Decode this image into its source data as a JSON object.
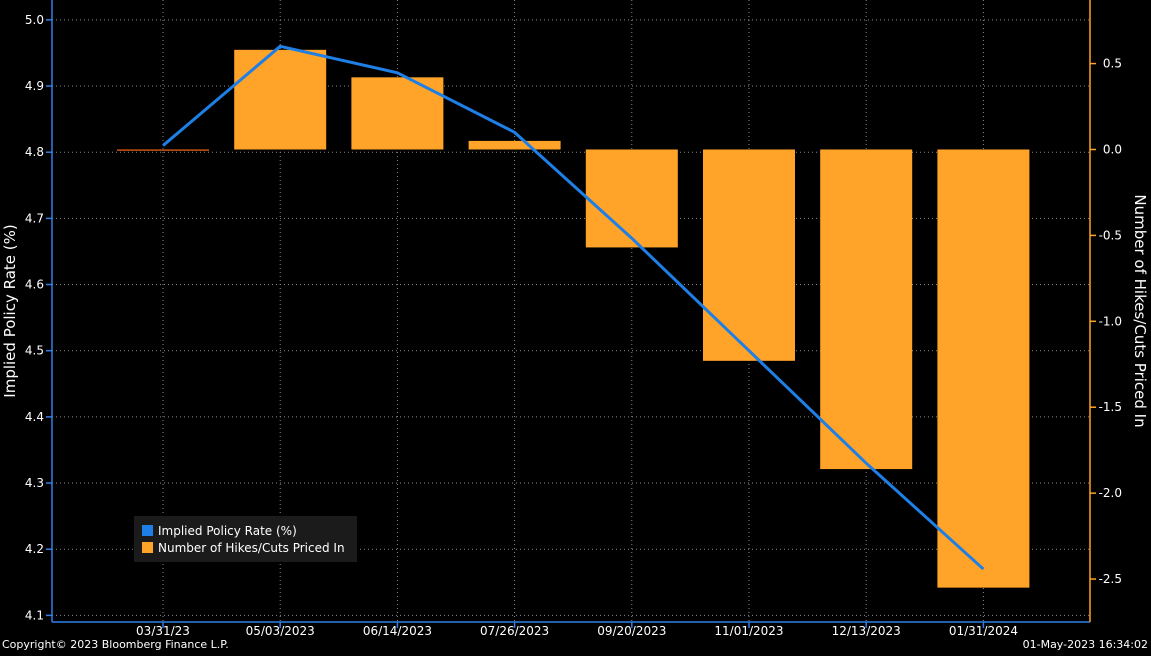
{
  "chart_data": {
    "type": "bar+line",
    "categories": [
      "03/31/23",
      "05/03/2023",
      "06/14/2023",
      "07/26/2023",
      "09/20/2023",
      "11/01/2023",
      "12/13/2023",
      "01/31/2024"
    ],
    "series": [
      {
        "name": "Implied Policy Rate (%)",
        "type": "line",
        "axis": "left",
        "color": "#1e7fe6",
        "values": [
          4.81,
          4.96,
          4.92,
          4.83,
          4.67,
          4.5,
          4.33,
          4.17
        ]
      },
      {
        "name": "Number of Hikes/Cuts Priced In",
        "type": "bar",
        "axis": "right",
        "color": "#ffa329",
        "values": [
          0.0,
          0.58,
          0.42,
          0.05,
          -0.57,
          -1.23,
          -1.86,
          -2.55
        ]
      }
    ],
    "left_axis": {
      "label": "Implied Policy Rate (%)",
      "ylim": [
        4.09,
        5.03
      ],
      "ticks": [
        "4.1",
        "4.2",
        "4.3",
        "4.4",
        "4.5",
        "4.6",
        "4.7",
        "4.8",
        "4.9",
        "5.0"
      ]
    },
    "right_axis": {
      "label": "Number of Hikes/Cuts Priced In",
      "ylim": [
        -2.75,
        0.87
      ],
      "ticks": [
        "-2.5",
        "-2.0",
        "-1.5",
        "-1.0",
        "-0.5",
        "0.0",
        "0.5"
      ]
    },
    "grid": true,
    "legend_position": "bottom-left",
    "axis_color": "#2f7fe6",
    "right_axis_color": "#ffa329",
    "background": "#000000"
  },
  "footer": {
    "copyright": "Copyright© 2023 Bloomberg Finance L.P.",
    "timestamp": "01-May-2023 16:34:02"
  }
}
